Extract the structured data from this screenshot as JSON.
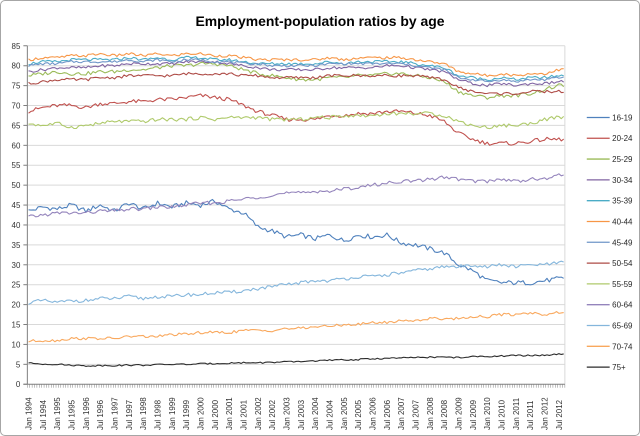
{
  "title": "Employment-population ratios by age",
  "chart_data": {
    "type": "line",
    "title": "Employment-population ratios by age",
    "xlabel": "",
    "ylabel": "",
    "ylim": [
      0,
      85
    ],
    "ytick_step": 5,
    "grid": true,
    "legend_position": "right",
    "x_tick_labels": [
      "Jan 1994",
      "Jul 1994",
      "Jan 1995",
      "Jul 1995",
      "Jan 1996",
      "Jul 1996",
      "Jan 1997",
      "Jul 1997",
      "Jan 1998",
      "Jul 1998",
      "Jan 1999",
      "Jul 1999",
      "Jan 2000",
      "Jul 2000",
      "Jan 2001",
      "Jul 2001",
      "Jan 2002",
      "Jul 2002",
      "Jan 2003",
      "Jul 2003",
      "Jan 2004",
      "Jul 2004",
      "Jan 2005",
      "Jul 2005",
      "Jan 2006",
      "Jul 2006",
      "Jan 2007",
      "Jul 2007",
      "Jan 2008",
      "Jul 2008",
      "Jan 2009",
      "Jul 2009",
      "Jan 2010",
      "Jul 2010",
      "Jan 2011",
      "Jul 2011",
      "Jan 2012",
      "Jul 2012"
    ],
    "colors": {
      "axis": "#7f7f7f",
      "grid": "#d9d9d9",
      "tick_text": "#333333"
    },
    "series": [
      {
        "name": "16-19",
        "color": "#4F81BD",
        "noise": 0.6,
        "values": [
          43.5,
          44.5,
          44,
          45,
          43.5,
          45,
          43.5,
          45.5,
          44,
          45.5,
          44.5,
          45.5,
          45,
          46,
          44,
          43,
          39.5,
          38.5,
          37,
          37.5,
          36.5,
          37.5,
          36,
          37.5,
          37,
          37.5,
          35.5,
          35,
          34,
          33,
          30,
          28.5,
          26,
          25.5,
          25.5,
          25.5,
          26,
          26.5
        ]
      },
      {
        "name": "20-24",
        "color": "#C0504D",
        "noise": 0.5,
        "values": [
          68.5,
          69.5,
          70,
          70,
          69.5,
          70.5,
          70.5,
          71,
          71,
          71.5,
          71.5,
          72,
          72.5,
          72,
          71.5,
          70,
          68.5,
          67.5,
          66.5,
          66.5,
          66.5,
          67.5,
          67.5,
          68,
          68,
          68.5,
          68.5,
          68,
          67.5,
          66,
          63,
          61.5,
          60.5,
          60.5,
          60.5,
          61,
          61.5,
          61.5
        ]
      },
      {
        "name": "25-29",
        "color": "#9BBB59",
        "noise": 0.45,
        "values": [
          77.5,
          78,
          78.5,
          78,
          78,
          78.5,
          78.5,
          79,
          79,
          79.5,
          80,
          80,
          80.5,
          80.5,
          80,
          79,
          78,
          77.5,
          77,
          76.5,
          76.5,
          77,
          77,
          77.5,
          77.5,
          78,
          78,
          77.5,
          77,
          76,
          73.5,
          72.5,
          72,
          72.5,
          72.5,
          73,
          74,
          75
        ]
      },
      {
        "name": "30-34",
        "color": "#8064A2",
        "noise": 0.35,
        "values": [
          78.5,
          79,
          79.5,
          79.5,
          79.5,
          80,
          80,
          80.5,
          80.5,
          80.5,
          80.5,
          81,
          81,
          81,
          80.5,
          80,
          79.5,
          79,
          79,
          79,
          79,
          79.5,
          79.5,
          79.5,
          79.5,
          80,
          80,
          79.5,
          79,
          78.5,
          76.5,
          75.5,
          75,
          75.5,
          75,
          75.5,
          75.5,
          76
        ]
      },
      {
        "name": "35-39",
        "color": "#4BACC6",
        "noise": 0.35,
        "values": [
          80.5,
          81,
          81,
          81.5,
          81.5,
          81.5,
          81.5,
          82,
          81.5,
          82,
          81.5,
          82,
          82,
          81.5,
          81.5,
          81,
          80.5,
          80.5,
          80.5,
          80.5,
          80.5,
          81,
          80.5,
          81,
          81,
          81,
          81,
          80.5,
          80,
          79.5,
          77.5,
          77,
          76.5,
          77,
          76.5,
          77,
          77,
          77.5
        ]
      },
      {
        "name": "40-44",
        "color": "#F79646",
        "noise": 0.35,
        "values": [
          81.5,
          82,
          82,
          82.5,
          82.5,
          83,
          82.5,
          83,
          82.5,
          83,
          82.5,
          83,
          83,
          82.5,
          82.5,
          82,
          81.5,
          81.5,
          81.5,
          81.5,
          81.5,
          82,
          81.5,
          82,
          82,
          82,
          82,
          81.5,
          81,
          80.5,
          78.5,
          78,
          77.5,
          78,
          77.5,
          78,
          78,
          79
        ]
      },
      {
        "name": "45-49",
        "color": "#6F96C8",
        "noise": 0.3,
        "values": [
          80,
          80.5,
          80.5,
          81,
          81,
          81,
          81,
          81.5,
          81,
          81.5,
          81,
          81.5,
          81.5,
          81,
          81,
          80.5,
          80.5,
          80,
          80,
          80,
          80,
          80.5,
          80.5,
          80.5,
          80.5,
          80.5,
          80.5,
          80,
          79.5,
          79,
          77,
          76.5,
          76,
          76.5,
          76,
          76.5,
          76.5,
          77
        ]
      },
      {
        "name": "50-54",
        "color": "#AE4B46",
        "noise": 0.35,
        "values": [
          75.5,
          76,
          76.5,
          76.5,
          76.5,
          77,
          77,
          77.5,
          77.5,
          77.5,
          77.5,
          78,
          78,
          78,
          78,
          77.5,
          77.5,
          77,
          77,
          77,
          77,
          77.5,
          77.5,
          77.5,
          77.5,
          77.5,
          77.5,
          77.5,
          77,
          76.5,
          74.5,
          73.5,
          73,
          73,
          73,
          73.5,
          73.5,
          73.5
        ]
      },
      {
        "name": "55-59",
        "color": "#AFCA6B",
        "noise": 0.45,
        "values": [
          65.5,
          65,
          65.5,
          64.5,
          65,
          65.5,
          66,
          66,
          66,
          66.5,
          66.5,
          66.5,
          67,
          66.5,
          67,
          67,
          67,
          66.5,
          66.5,
          66.5,
          67,
          67,
          67.5,
          67.5,
          67.5,
          68,
          68,
          68,
          68,
          67.5,
          66,
          65,
          64.5,
          65,
          65,
          65.5,
          66.5,
          67
        ]
      },
      {
        "name": "60-64",
        "color": "#9484BC",
        "noise": 0.45,
        "values": [
          42,
          42.5,
          43,
          43,
          43,
          43.5,
          43.5,
          44,
          44,
          44.5,
          44.5,
          45,
          45.5,
          45.5,
          46,
          46.5,
          47,
          47.5,
          48,
          48,
          48.5,
          48.5,
          49,
          49.5,
          50,
          50.5,
          51,
          51,
          51.5,
          52,
          51.5,
          51,
          51,
          51.5,
          51,
          51.5,
          51.5,
          52.5
        ]
      },
      {
        "name": "65-69",
        "color": "#84B6DC",
        "noise": 0.45,
        "values": [
          20.5,
          21,
          20.5,
          21,
          21,
          21.5,
          21.5,
          22,
          21.5,
          22,
          22,
          22.5,
          22.5,
          23,
          23,
          23.5,
          24,
          24.5,
          25,
          25.5,
          26,
          26,
          26.5,
          27,
          27,
          27.5,
          28,
          28.5,
          29,
          29.5,
          29.5,
          30,
          29.5,
          30,
          29.5,
          30,
          30,
          30.5
        ]
      },
      {
        "name": "70-74",
        "color": "#F9A85D",
        "noise": 0.35,
        "values": [
          10.8,
          11,
          11,
          11.5,
          11.5,
          11.5,
          11.5,
          12,
          12,
          12,
          12.5,
          12.5,
          13,
          13,
          13,
          13.5,
          13.5,
          13.5,
          14,
          14,
          14.5,
          14.5,
          15,
          15,
          15.5,
          15.5,
          16,
          16,
          16.5,
          16.5,
          16.5,
          17,
          17,
          17.5,
          17.5,
          18,
          17.5,
          18
        ]
      },
      {
        "name": "75+",
        "color": "#2B2B2B",
        "noise": 0.18,
        "values": [
          5.3,
          5.1,
          5,
          4.8,
          4.6,
          4.7,
          4.7,
          4.8,
          4.8,
          4.9,
          5,
          5,
          5.1,
          5.2,
          5.3,
          5.4,
          5.4,
          5.5,
          5.6,
          5.7,
          5.9,
          6,
          6.1,
          6.2,
          6.4,
          6.5,
          6.6,
          6.7,
          6.8,
          6.8,
          6.7,
          6.9,
          7,
          7.1,
          7.2,
          7.2,
          7.3,
          7.5
        ]
      }
    ]
  }
}
